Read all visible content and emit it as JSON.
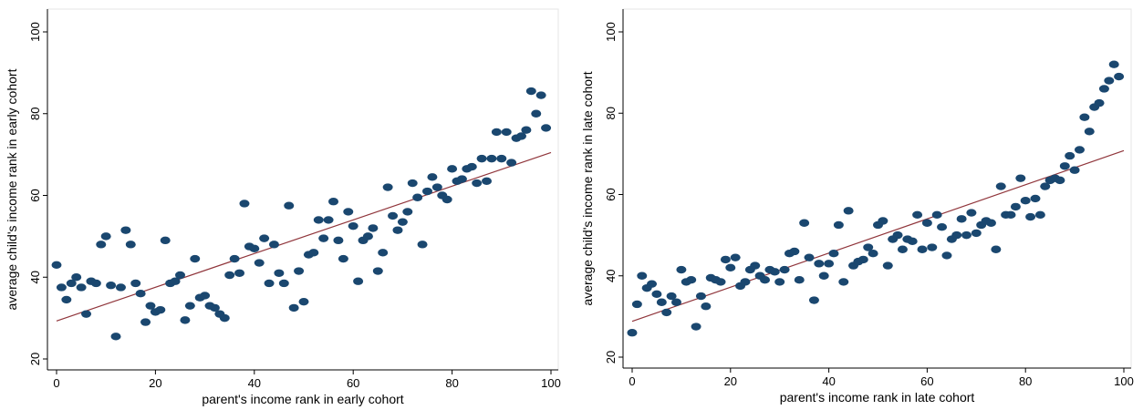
{
  "chart_data": [
    {
      "type": "scatter",
      "xlabel": "parent's income rank in early cohort",
      "ylabel": "average child's income rank in early cohort",
      "xlim": [
        0,
        100
      ],
      "ylim": [
        20,
        100
      ],
      "xticks": [
        0,
        20,
        40,
        60,
        80,
        100
      ],
      "yticks": [
        20,
        40,
        60,
        80,
        100
      ],
      "grid": false,
      "legend": "none",
      "marker_color": "#1a476f",
      "fit_line_color": "#90353b",
      "fit_line": {
        "x": [
          0,
          100
        ],
        "y": [
          29.3,
          70.5
        ]
      },
      "points": [
        [
          0,
          43
        ],
        [
          1,
          37.5
        ],
        [
          2,
          34.5
        ],
        [
          3,
          38.5
        ],
        [
          4,
          40
        ],
        [
          5,
          37.5
        ],
        [
          6,
          31
        ],
        [
          7,
          39
        ],
        [
          8,
          38.5
        ],
        [
          9,
          48
        ],
        [
          10,
          50
        ],
        [
          11,
          38
        ],
        [
          12,
          25.5
        ],
        [
          13,
          37.5
        ],
        [
          14,
          51.5
        ],
        [
          15,
          48
        ],
        [
          16,
          38.5
        ],
        [
          17,
          36
        ],
        [
          18,
          29
        ],
        [
          19,
          33
        ],
        [
          20,
          31.5
        ],
        [
          21,
          32
        ],
        [
          22,
          49
        ],
        [
          23,
          38.5
        ],
        [
          24,
          39
        ],
        [
          25,
          40.5
        ],
        [
          26,
          29.5
        ],
        [
          27,
          33
        ],
        [
          28,
          44.5
        ],
        [
          29,
          35
        ],
        [
          30,
          35.5
        ],
        [
          31,
          33
        ],
        [
          32,
          32.5
        ],
        [
          33,
          31
        ],
        [
          34,
          30
        ],
        [
          35,
          40.5
        ],
        [
          36,
          44.5
        ],
        [
          37,
          41
        ],
        [
          38,
          58
        ],
        [
          39,
          47.5
        ],
        [
          40,
          47
        ],
        [
          41,
          43.5
        ],
        [
          42,
          49.5
        ],
        [
          43,
          38.5
        ],
        [
          44,
          48
        ],
        [
          45,
          41
        ],
        [
          46,
          38.5
        ],
        [
          47,
          57.5
        ],
        [
          48,
          32.5
        ],
        [
          49,
          41.5
        ],
        [
          50,
          34
        ],
        [
          51,
          45.5
        ],
        [
          52,
          46
        ],
        [
          53,
          54
        ],
        [
          54,
          49.5
        ],
        [
          55,
          54
        ],
        [
          56,
          58.5
        ],
        [
          57,
          49
        ],
        [
          58,
          44.5
        ],
        [
          59,
          56
        ],
        [
          60,
          52.5
        ],
        [
          61,
          39
        ],
        [
          62,
          49
        ],
        [
          63,
          50
        ],
        [
          64,
          52
        ],
        [
          65,
          41.5
        ],
        [
          66,
          46
        ],
        [
          67,
          62
        ],
        [
          68,
          55
        ],
        [
          69,
          51.5
        ],
        [
          70,
          53.5
        ],
        [
          71,
          56
        ],
        [
          72,
          63
        ],
        [
          73,
          59.5
        ],
        [
          74,
          48
        ],
        [
          75,
          61
        ],
        [
          76,
          64.5
        ],
        [
          77,
          62
        ],
        [
          78,
          60
        ],
        [
          79,
          59
        ],
        [
          80,
          66.5
        ],
        [
          81,
          63.5
        ],
        [
          82,
          64
        ],
        [
          83,
          66.5
        ],
        [
          84,
          67
        ],
        [
          85,
          63
        ],
        [
          86,
          69
        ],
        [
          87,
          63.5
        ],
        [
          88,
          69
        ],
        [
          89,
          75.5
        ],
        [
          90,
          69
        ],
        [
          91,
          75.5
        ],
        [
          92,
          68
        ],
        [
          93,
          74
        ],
        [
          94,
          74.5
        ],
        [
          95,
          76
        ],
        [
          96,
          85.5
        ],
        [
          97,
          80
        ],
        [
          98,
          84.5
        ],
        [
          99,
          76.5
        ]
      ]
    },
    {
      "type": "scatter",
      "xlabel": "parent's income rank in late cohort",
      "ylabel": "average child's income rank in late cohort",
      "xlim": [
        0,
        100
      ],
      "ylim": [
        20,
        100
      ],
      "xticks": [
        0,
        20,
        40,
        60,
        80,
        100
      ],
      "yticks": [
        20,
        40,
        60,
        80,
        100
      ],
      "grid": false,
      "legend": "none",
      "marker_color": "#1a476f",
      "fit_line_color": "#90353b",
      "fit_line": {
        "x": [
          0,
          100
        ],
        "y": [
          28.8,
          70.8
        ]
      },
      "points": [
        [
          0,
          26
        ],
        [
          1,
          33
        ],
        [
          2,
          40
        ],
        [
          3,
          37
        ],
        [
          4,
          38
        ],
        [
          5,
          35.5
        ],
        [
          6,
          33.5
        ],
        [
          7,
          31
        ],
        [
          8,
          35
        ],
        [
          9,
          33.5
        ],
        [
          10,
          41.5
        ],
        [
          11,
          38.5
        ],
        [
          12,
          39
        ],
        [
          13,
          27.5
        ],
        [
          14,
          35
        ],
        [
          15,
          32.5
        ],
        [
          16,
          39.5
        ],
        [
          17,
          39
        ],
        [
          18,
          38.5
        ],
        [
          19,
          44
        ],
        [
          20,
          42
        ],
        [
          21,
          44.5
        ],
        [
          22,
          37.5
        ],
        [
          23,
          38.5
        ],
        [
          24,
          41.5
        ],
        [
          25,
          42.5
        ],
        [
          26,
          40
        ],
        [
          27,
          39
        ],
        [
          28,
          41.5
        ],
        [
          29,
          41
        ],
        [
          30,
          38.5
        ],
        [
          31,
          41.5
        ],
        [
          32,
          45.5
        ],
        [
          33,
          46
        ],
        [
          34,
          39
        ],
        [
          35,
          53
        ],
        [
          36,
          44.5
        ],
        [
          37,
          34
        ],
        [
          38,
          43
        ],
        [
          39,
          40
        ],
        [
          40,
          43
        ],
        [
          41,
          45.5
        ],
        [
          42,
          52.5
        ],
        [
          43,
          38.5
        ],
        [
          44,
          56
        ],
        [
          45,
          42.5
        ],
        [
          46,
          43.5
        ],
        [
          47,
          44
        ],
        [
          48,
          47
        ],
        [
          49,
          45.5
        ],
        [
          50,
          52.5
        ],
        [
          51,
          53.5
        ],
        [
          52,
          42.5
        ],
        [
          53,
          49
        ],
        [
          54,
          50
        ],
        [
          55,
          46.5
        ],
        [
          56,
          49
        ],
        [
          57,
          48.5
        ],
        [
          58,
          55
        ],
        [
          59,
          46.5
        ],
        [
          60,
          53
        ],
        [
          61,
          47
        ],
        [
          62,
          55
        ],
        [
          63,
          52
        ],
        [
          64,
          45
        ],
        [
          65,
          49
        ],
        [
          66,
          50
        ],
        [
          67,
          54
        ],
        [
          68,
          50
        ],
        [
          69,
          55.5
        ],
        [
          70,
          50.5
        ],
        [
          71,
          52.5
        ],
        [
          72,
          53.5
        ],
        [
          73,
          53
        ],
        [
          74,
          46.5
        ],
        [
          75,
          62
        ],
        [
          76,
          55
        ],
        [
          77,
          55
        ],
        [
          78,
          57
        ],
        [
          79,
          64
        ],
        [
          80,
          58.5
        ],
        [
          81,
          54.5
        ],
        [
          82,
          59
        ],
        [
          83,
          55
        ],
        [
          84,
          62
        ],
        [
          85,
          63.5
        ],
        [
          86,
          64
        ],
        [
          87,
          63.5
        ],
        [
          88,
          67
        ],
        [
          89,
          69.5
        ],
        [
          90,
          66
        ],
        [
          91,
          71
        ],
        [
          92,
          79
        ],
        [
          93,
          75.5
        ],
        [
          94,
          81.5
        ],
        [
          95,
          82.5
        ],
        [
          96,
          86
        ],
        [
          97,
          88
        ],
        [
          98,
          92
        ],
        [
          99,
          89
        ]
      ]
    }
  ]
}
